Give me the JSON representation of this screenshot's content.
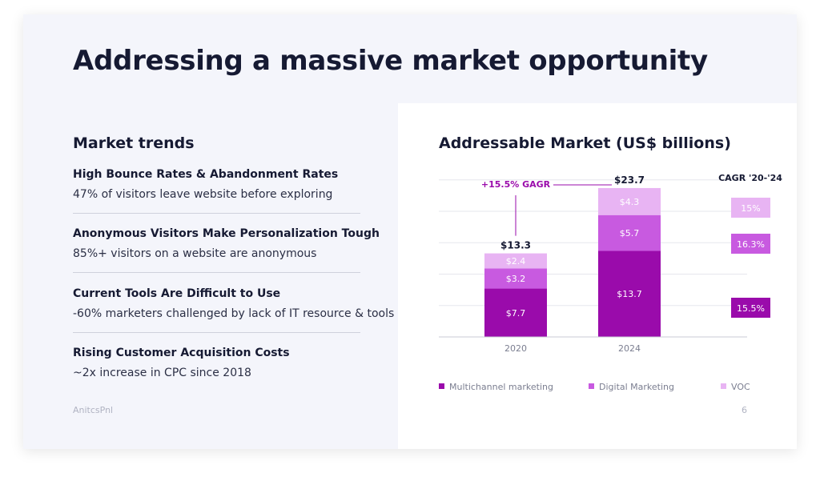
{
  "slide": {
    "title": "Addressing a massive market opportunity",
    "footer_logo": "AnitcsPnl",
    "page_number": "6"
  },
  "trends": {
    "heading": "Market trends",
    "items": [
      {
        "title": "High Bounce Rates & Abandonment Rates",
        "desc": "47% of visitors leave website before exploring"
      },
      {
        "title": "Anonymous Visitors Make Personalization Tough",
        "desc": "85%+ visitors on a website are anonymous"
      },
      {
        "title": "Current Tools Are Difficult to Use",
        "desc": "-60% marketers challenged by lack of IT resource & tools"
      },
      {
        "title": "Rising Customer Acquisition Costs",
        "desc": "~2x increase in CPC since 2018"
      }
    ]
  },
  "chart_data": {
    "type": "bar",
    "stacked": true,
    "title": "Addressable Market (US$ billions)",
    "categories": [
      "2020",
      "2024"
    ],
    "series": [
      {
        "name": "Multichannel marketing",
        "values": [
          7.7,
          13.7
        ],
        "labels": [
          "$7.7",
          "$13.7"
        ],
        "color": "#9a0bab"
      },
      {
        "name": "Digital Marketing",
        "values": [
          3.2,
          5.7
        ],
        "labels": [
          "$3.2",
          "$5.7"
        ],
        "color": "#c85ae0"
      },
      {
        "name": "VOC",
        "values": [
          2.4,
          4.3
        ],
        "labels": [
          "$2.4",
          "$4.3"
        ],
        "color": "#e8b4f3"
      }
    ],
    "totals": [
      "$13.3",
      "$23.7"
    ],
    "growth_annotation": "+15.5% GAGR",
    "cagr": {
      "title": "CAGR '20-'24",
      "values": [
        "15%",
        "16.3%",
        "15.5%"
      ]
    },
    "ylim": [
      0,
      25
    ],
    "grid": true,
    "legend_position": "bottom"
  }
}
